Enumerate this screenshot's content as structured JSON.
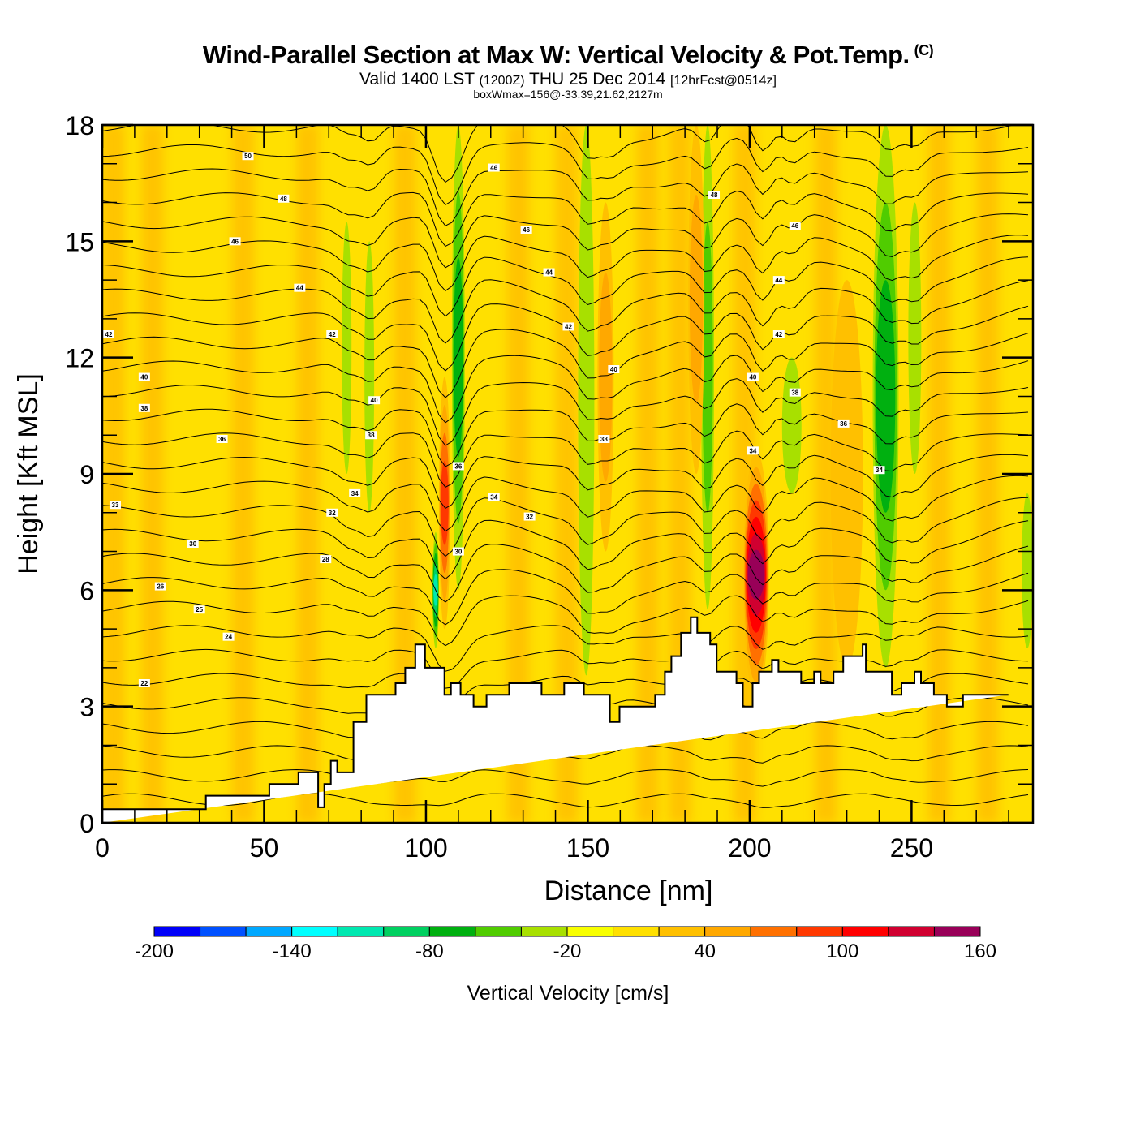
{
  "header": {
    "title": "Wind-Parallel Section at Max W: Vertical Velocity & Pot.Temp.",
    "copyright": "(C)",
    "valid_prefix": "Valid 1400 LST",
    "valid_utc": "(1200Z)",
    "valid_date": "THU 25 Dec 2014",
    "forecast": "[12hrFcst@0514z]",
    "box_info": "boxWmax=156@-33.39,21.62,2127m"
  },
  "chart_data": {
    "type": "heatmap",
    "title": "Wind-Parallel Section at Max W: Vertical Velocity & Pot.Temp.",
    "xlabel": "Distance [nm]",
    "ylabel": "Height [Kft MSL]",
    "xlim": [
      0,
      287.5
    ],
    "ylim": [
      0,
      18
    ],
    "x_ticks": [
      0,
      50,
      100,
      150,
      200,
      250
    ],
    "x_minor_step": 10,
    "y_ticks": [
      0,
      3,
      6,
      9,
      12,
      15,
      18
    ],
    "y_minor_step": 1,
    "grid": false,
    "colorbar": {
      "title": "Vertical Velocity [cm/s]",
      "levels": [
        -200,
        -180,
        -160,
        -140,
        -120,
        -100,
        -80,
        -60,
        -40,
        -20,
        0,
        20,
        40,
        60,
        80,
        100,
        120,
        140,
        160
      ],
      "tick_labels": [
        "-200",
        "-140",
        "-80",
        "-20",
        "40",
        "100",
        "160"
      ],
      "tick_values": [
        -200,
        -140,
        -80,
        -20,
        40,
        100,
        160
      ],
      "colors": [
        "#0000f8",
        "#0050ff",
        "#00a8ff",
        "#00ffff",
        "#00e8b0",
        "#00d060",
        "#00b010",
        "#50cc00",
        "#a8e000",
        "#f8ff00",
        "#ffe000",
        "#ffc000",
        "#ffa800",
        "#ff7000",
        "#ff3800",
        "#ff0000",
        "#d00030",
        "#980058"
      ],
      "placement": "bottom"
    },
    "background_w": 10,
    "w_features": [
      {
        "name": "updraft-ridge-100nm",
        "x": [
          104,
          107.5
        ],
        "y": [
          5.0,
          11.5
        ],
        "w": 100
      },
      {
        "name": "downdraft-lee-101nm",
        "x": [
          102,
          104
        ],
        "y": [
          4.5,
          7.5
        ],
        "w": -110
      },
      {
        "name": "downdraft-band-110nm",
        "x": [
          108,
          112
        ],
        "y": [
          6.0,
          18
        ],
        "w": -70
      },
      {
        "name": "downdraft-band-76nm",
        "x": [
          74,
          77
        ],
        "y": [
          9,
          15.5
        ],
        "w": -30
      },
      {
        "name": "downdraft-band-82nm",
        "x": [
          81,
          84
        ],
        "y": [
          8,
          15
        ],
        "w": -30
      },
      {
        "name": "downdraft-band-150nm",
        "x": [
          147,
          152
        ],
        "y": [
          3.8,
          18
        ],
        "w": -40
      },
      {
        "name": "updraft-band-155nm",
        "x": [
          153,
          158
        ],
        "y": [
          7,
          16
        ],
        "w": 50
      },
      {
        "name": "downdraft-band-187nm",
        "x": [
          185,
          189
        ],
        "y": [
          5.5,
          18
        ],
        "w": -50
      },
      {
        "name": "updraft-band-185nm",
        "x": [
          181,
          186
        ],
        "y": [
          9,
          18
        ],
        "w": 50
      },
      {
        "name": "max-w-core-201nm",
        "x": [
          198,
          206
        ],
        "y": [
          3.2,
          9.6
        ],
        "w": 156
      },
      {
        "name": "downdraft-band-212nm",
        "x": [
          210,
          216
        ],
        "y": [
          8.5,
          12
        ],
        "w": -35
      },
      {
        "name": "downdraft-band-243nm",
        "x": [
          238,
          246
        ],
        "y": [
          4.0,
          18
        ],
        "w": -80
      },
      {
        "name": "downdraft-band-251nm",
        "x": [
          249,
          253
        ],
        "y": [
          9,
          16
        ],
        "w": -35
      },
      {
        "name": "updraft-band-230nm",
        "x": [
          225,
          235
        ],
        "y": [
          4,
          14
        ],
        "w": 40
      },
      {
        "name": "downdraft-band-285nm",
        "x": [
          284,
          287.5
        ],
        "y": [
          4.5,
          8.5
        ],
        "w": -30
      }
    ],
    "terrain": {
      "x": [
        0,
        32,
        32,
        51.6,
        51.6,
        60.6,
        60.6,
        66.7,
        66.7,
        68.6,
        68.6,
        70.6,
        70.6,
        72.6,
        72.6,
        77.6,
        77.6,
        81.6,
        81.6,
        90.6,
        90.6,
        93.6,
        93.6,
        96.7,
        96.7,
        99.7,
        99.7,
        105.7,
        105.7,
        107.7,
        107.7,
        110.7,
        110.7,
        114.7,
        114.7,
        118.7,
        118.7,
        125.7,
        125.7,
        135.7,
        135.7,
        142.7,
        142.7,
        148.8,
        148.8,
        156.8,
        156.8,
        159.8,
        159.8,
        170.8,
        170.8,
        173.8,
        173.8,
        175.8,
        175.8,
        178.8,
        178.8,
        181.8,
        181.8,
        183.8,
        183.8,
        187.8,
        187.8,
        189.8,
        189.8,
        195.9,
        195.9,
        197.9,
        197.9,
        200.9,
        200.9,
        202.9,
        202.9,
        206.9,
        206.9,
        208.9,
        208.9,
        215.9,
        215.9,
        219.9,
        219.9,
        221.9,
        221.9,
        225.9,
        225.9,
        228.9,
        228.9,
        234.9,
        234.9,
        235.9,
        235.9,
        243.9,
        243.9,
        246.9,
        246.9,
        250.9,
        250.9,
        252.9,
        252.9,
        256.9,
        256.9,
        260.9,
        260.9,
        265.9,
        265.9,
        279.9,
        279.9,
        287.5
      ],
      "height": [
        0.35,
        0.35,
        0.7,
        0.7,
        1.0,
        1.0,
        1.3,
        1.3,
        0.4,
        0.4,
        1.0,
        1.0,
        1.6,
        1.6,
        1.3,
        1.3,
        2.6,
        2.6,
        3.3,
        3.3,
        3.6,
        3.6,
        4.0,
        4.0,
        4.6,
        4.6,
        4.0,
        4.0,
        3.3,
        3.3,
        3.6,
        3.6,
        3.3,
        3.3,
        3.0,
        3.0,
        3.3,
        3.3,
        3.6,
        3.6,
        3.3,
        3.3,
        3.6,
        3.6,
        3.3,
        3.3,
        2.6,
        2.6,
        3.0,
        3.0,
        3.3,
        3.3,
        3.9,
        3.9,
        4.3,
        4.3,
        4.9,
        4.9,
        5.3,
        5.3,
        4.9,
        4.9,
        4.6,
        4.6,
        3.9,
        3.9,
        3.6,
        3.6,
        3.0,
        3.0,
        3.6,
        3.6,
        3.9,
        3.9,
        4.2,
        4.2,
        3.9,
        3.9,
        3.6,
        3.6,
        3.9,
        3.9,
        3.6,
        3.6,
        3.9,
        3.9,
        4.3,
        4.3,
        4.6,
        4.6,
        3.9,
        3.9,
        3.3,
        3.3,
        3.6,
        3.6,
        3.9,
        3.9,
        3.6,
        3.6,
        3.3,
        3.3,
        3.0,
        3.0,
        3.3,
        3.3
      ]
    },
    "theta_contours": {
      "variable": "Potential Temperature",
      "interval": 1,
      "labels": [
        {
          "text": "50",
          "x": 45,
          "y": 17.2
        },
        {
          "text": "48",
          "x": 56,
          "y": 16.1
        },
        {
          "text": "46",
          "x": 41,
          "y": 15.0
        },
        {
          "text": "44",
          "x": 61,
          "y": 13.8
        },
        {
          "text": "42",
          "x": 2,
          "y": 12.6
        },
        {
          "text": "42",
          "x": 71,
          "y": 12.6
        },
        {
          "text": "40",
          "x": 13,
          "y": 11.5
        },
        {
          "text": "40",
          "x": 84,
          "y": 10.9
        },
        {
          "text": "38",
          "x": 13,
          "y": 10.7
        },
        {
          "text": "38",
          "x": 83,
          "y": 10.0
        },
        {
          "text": "36",
          "x": 37,
          "y": 9.9
        },
        {
          "text": "36",
          "x": 110,
          "y": 9.2
        },
        {
          "text": "34",
          "x": 78,
          "y": 8.5
        },
        {
          "text": "34",
          "x": 121,
          "y": 8.4
        },
        {
          "text": "34",
          "x": 240,
          "y": 9.1
        },
        {
          "text": "33",
          "x": 4,
          "y": 8.2
        },
        {
          "text": "32",
          "x": 71,
          "y": 8.0
        },
        {
          "text": "32",
          "x": 132,
          "y": 7.9
        },
        {
          "text": "30",
          "x": 28,
          "y": 7.2
        },
        {
          "text": "30",
          "x": 110,
          "y": 7.0
        },
        {
          "text": "28",
          "x": 69,
          "y": 6.8
        },
        {
          "text": "26",
          "x": 18,
          "y": 6.1
        },
        {
          "text": "25",
          "x": 30,
          "y": 5.5
        },
        {
          "text": "24",
          "x": 39,
          "y": 4.8
        },
        {
          "text": "22",
          "x": 13,
          "y": 3.6
        },
        {
          "text": "46",
          "x": 121,
          "y": 16.9
        },
        {
          "text": "46",
          "x": 131,
          "y": 15.3
        },
        {
          "text": "44",
          "x": 138,
          "y": 14.2
        },
        {
          "text": "42",
          "x": 144,
          "y": 12.8
        },
        {
          "text": "40",
          "x": 158,
          "y": 11.7
        },
        {
          "text": "38",
          "x": 155,
          "y": 9.9
        },
        {
          "text": "48",
          "x": 189,
          "y": 16.2
        },
        {
          "text": "46",
          "x": 214,
          "y": 15.4
        },
        {
          "text": "44",
          "x": 209,
          "y": 14.0
        },
        {
          "text": "42",
          "x": 209,
          "y": 12.6
        },
        {
          "text": "40",
          "x": 201,
          "y": 11.5
        },
        {
          "text": "38",
          "x": 214,
          "y": 11.1
        },
        {
          "text": "36",
          "x": 229,
          "y": 10.3
        },
        {
          "text": "34",
          "x": 201,
          "y": 9.6
        }
      ]
    }
  }
}
